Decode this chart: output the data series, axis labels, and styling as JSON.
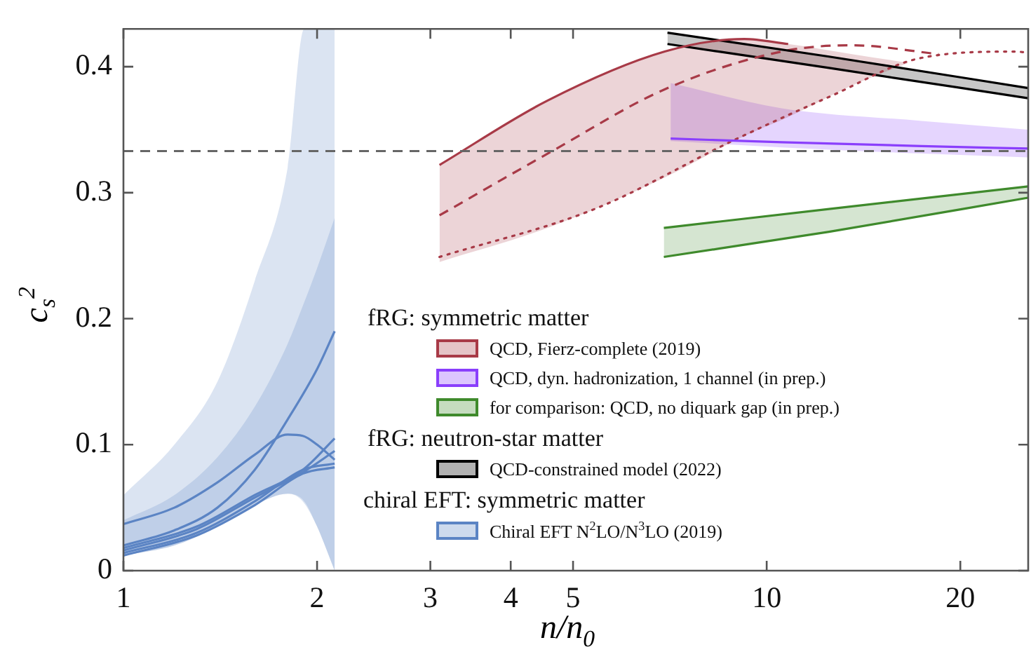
{
  "chart_data": {
    "type": "line",
    "xlabel": "n/n$_{0}$",
    "ylabel": "c$_{s}$$^{2}$",
    "log": "x",
    "xlim": [
      1,
      25.5
    ],
    "xticks": [
      1,
      2,
      3,
      4,
      5,
      10,
      20
    ],
    "ylim": [
      0,
      0.43
    ],
    "yticks": [
      0,
      0.1,
      0.2,
      0.3,
      0.4
    ],
    "legend": "bottom",
    "annotations": [
      "fRG: symmetric matter",
      "fRG: neutron-star matter",
      "chiral EFT: symmetric matter"
    ],
    "ref_lines": [
      {
        "axis": "y",
        "value": 0.333,
        "color": "#666666",
        "line_style": "dashed"
      }
    ],
    "series": [
      {
        "name": "QCD, Fierz-complete (2019)",
        "color": "#a83a47",
        "x": [
          3.1,
          4.56,
          6.94,
          9.23,
          10.8,
          13.57,
          16.6
        ],
        "values": [
          0.322,
          0.373,
          0.412,
          0.422,
          0.418,
          null,
          null
        ],
        "lower": [
          0.245,
          0.272,
          0.312,
          0.345,
          0.36,
          0.385,
          0.403
        ],
        "upper": [
          0.322,
          0.373,
          0.412,
          0.422,
          0.418,
          0.41,
          0.403
        ]
      },
      {
        "name": "QCD, dyn. hadronization, 1 channel (in prep.)",
        "color": "#8a3ffc",
        "x": [
          7.09,
          10.55,
          17.4,
          25.5
        ],
        "values": [
          0.343,
          0.34,
          0.337,
          0.335
        ],
        "lower": [
          0.341,
          0.336,
          0.331,
          0.328
        ],
        "upper": [
          0.387,
          0.367,
          0.357,
          0.35
        ]
      },
      {
        "name": "for comparison: QCD, no diquark gap (in prep.)",
        "color": "#3f8a2c",
        "x": [
          6.92,
          12.5,
          25.5
        ],
        "values": [
          0.272,
          0.287,
          0.305
        ],
        "lower": [
          0.249,
          0.269,
          0.296
        ],
        "upper": [
          0.272,
          0.287,
          0.305
        ]
      },
      {
        "name": "QCD-constrained model (2022)",
        "color": "#000000",
        "x": [
          7.01,
          12.5,
          25.5
        ],
        "values": [
          0.427,
          0.408,
          0.383
        ],
        "lower": [
          0.418,
          0.399,
          0.375
        ],
        "upper": [
          0.427,
          0.408,
          0.383
        ]
      },
      {
        "name": "Chiral EFT N$^{2}$LO/N$^{3}$LO (2019)",
        "color": "#5b84c4",
        "x": [
          1,
          1.2,
          1.4,
          1.6,
          1.8,
          1.9,
          2.0,
          2.13
        ],
        "values": [
          0.037,
          0.05,
          0.07,
          0.092,
          0.108,
          0.107,
          0.1,
          0.088
        ],
        "lower": [
          0.012,
          0.02,
          0.035,
          0.052,
          0.061,
          0.055,
          0.035,
          0.0
        ],
        "upper": [
          0.04,
          0.06,
          0.09,
          0.13,
          0.18,
          0.21,
          0.24,
          0.28
        ]
      },
      {
        "color": "#5b84c4",
        "x": [
          1,
          1.2,
          1.4,
          1.6,
          1.8,
          1.91,
          2.0,
          2.13
        ],
        "values": [
          null,
          null,
          null,
          null,
          null,
          null,
          null,
          null
        ],
        "lower": [
          0.012,
          0.02,
          0.035,
          0.052,
          0.061,
          0.055,
          0.035,
          0.0
        ],
        "upper": [
          0.06,
          0.1,
          0.15,
          0.23,
          0.32,
          0.43,
          0.43,
          0.43
        ]
      },
      {
        "color": "#a83a47",
        "line_style": "dashed",
        "x": [
          3.1,
          4.64,
          6.94,
          10.55,
          13.57,
          18.5
        ],
        "values": [
          0.282,
          0.333,
          0.382,
          0.412,
          0.417,
          0.41
        ]
      },
      {
        "color": "#a83a47",
        "line_style": "dotted",
        "x": [
          3.1,
          5.4,
          8.92,
          12.5,
          17.4,
          24.4,
          25.5
        ],
        "values": [
          0.249,
          0.287,
          0.342,
          0.376,
          0.407,
          0.412,
          0.411
        ]
      },
      {
        "color": "#3f8a2c",
        "x": [
          6.92,
          12.5,
          25.5
        ],
        "values": [
          0.249,
          0.269,
          0.296
        ]
      },
      {
        "color": "#000000",
        "x": [
          7.01,
          12.5,
          25.5
        ],
        "values": [
          0.418,
          0.399,
          0.375
        ]
      },
      {
        "color": "#5b84c4",
        "x": [
          1,
          1.2,
          1.4,
          1.6,
          1.8,
          2.0,
          2.13
        ],
        "values": [
          0.02,
          0.032,
          0.05,
          0.08,
          0.12,
          0.16,
          0.19
        ]
      },
      {
        "color": "#5b84c4",
        "x": [
          1,
          1.3,
          1.6,
          1.9,
          2.13
        ],
        "values": [
          0.018,
          0.035,
          0.06,
          0.08,
          0.105
        ]
      },
      {
        "color": "#5b84c4",
        "x": [
          1,
          1.3,
          1.6,
          1.9,
          2.13
        ],
        "values": [
          0.016,
          0.033,
          0.058,
          0.078,
          0.095
        ]
      },
      {
        "color": "#5b84c4",
        "x": [
          1,
          1.3,
          1.6,
          1.9,
          2.13
        ],
        "values": [
          0.014,
          0.03,
          0.055,
          0.08,
          0.085
        ]
      },
      {
        "color": "#5b84c4",
        "x": [
          1,
          1.3,
          1.6,
          1.9,
          2.13
        ],
        "values": [
          0.012,
          0.028,
          0.052,
          0.077,
          0.082
        ]
      }
    ]
  }
}
